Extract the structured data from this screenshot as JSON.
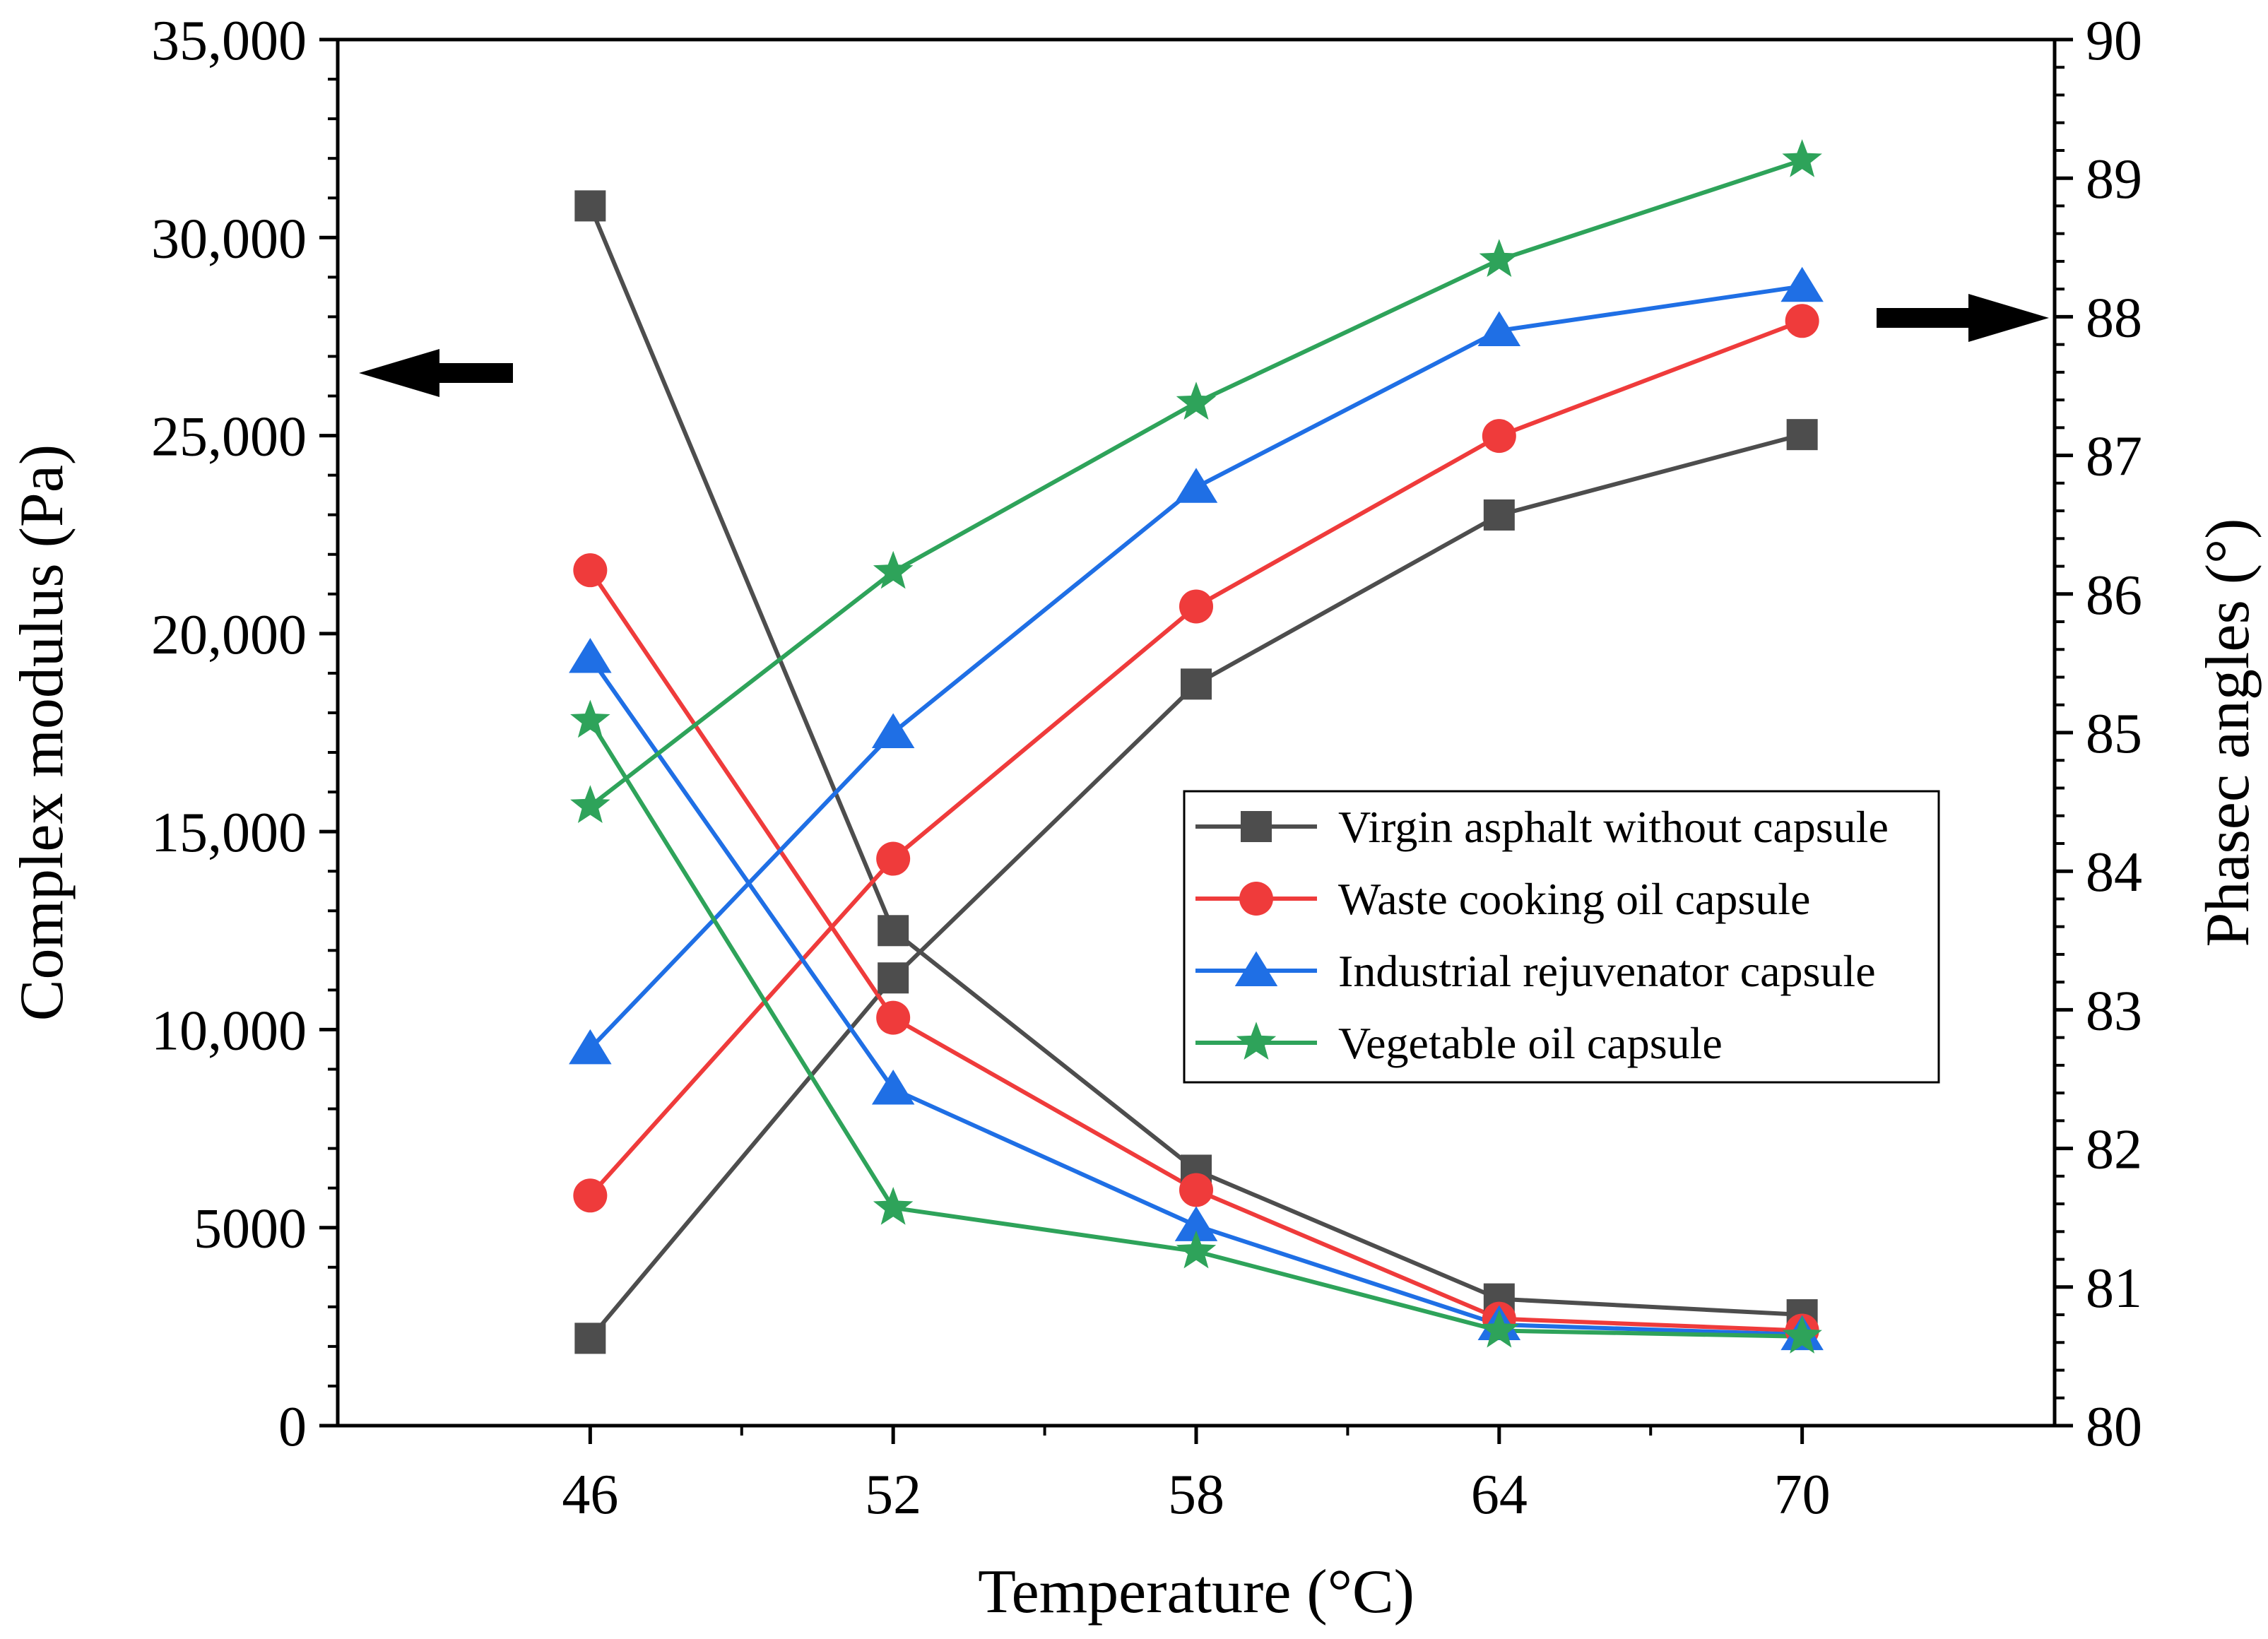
{
  "chart_data": {
    "type": "line",
    "x": [
      46,
      52,
      58,
      64,
      70
    ],
    "x_tick_labels": [
      "46",
      "52",
      "58",
      "64",
      "70"
    ],
    "xlabel": "Temperature (°C)",
    "xlim": [
      41,
      75
    ],
    "y_left": {
      "label": "Complex modulus (Pa)",
      "lim": [
        0,
        35000
      ],
      "ticks": [
        0,
        5000,
        10000,
        15000,
        20000,
        25000,
        30000,
        35000
      ],
      "tick_labels": [
        "0",
        "5000",
        "10,000",
        "15,000",
        "20,000",
        "25,000",
        "30,000",
        "35,000"
      ]
    },
    "y_right": {
      "label": "Phasec angles (°)",
      "lim": [
        80,
        90
      ],
      "ticks": [
        80,
        81,
        82,
        83,
        84,
        85,
        86,
        87,
        88,
        89,
        90
      ],
      "tick_labels": [
        "80",
        "81",
        "82",
        "83",
        "84",
        "85",
        "86",
        "87",
        "88",
        "89",
        "90"
      ]
    },
    "grid": false,
    "legend_position": "center-right",
    "series": [
      {
        "name": "Virgin asphalt without capsule",
        "color": "#4d4d4d",
        "marker": "square",
        "complex_modulus": [
          30800,
          12500,
          6450,
          3200,
          2800
        ],
        "phase_angle": [
          80.63,
          83.23,
          85.35,
          86.57,
          87.15
        ]
      },
      {
        "name": "Waste cooking oil capsule",
        "color": "#ef3b3b",
        "marker": "circle",
        "complex_modulus": [
          21600,
          10300,
          5950,
          2700,
          2400
        ],
        "phase_angle": [
          81.66,
          84.09,
          85.91,
          87.14,
          87.97
        ]
      },
      {
        "name": "Industrial rejuvenator capsule",
        "color": "#1f6fe5",
        "marker": "triangle",
        "complex_modulus": [
          19400,
          8500,
          5050,
          2550,
          2300
        ],
        "phase_angle": [
          82.72,
          85.0,
          86.77,
          87.9,
          88.22
        ]
      },
      {
        "name": "Vegetable oil capsule",
        "color": "#2ea35a",
        "marker": "star",
        "complex_modulus": [
          17800,
          5500,
          4400,
          2400,
          2250
        ],
        "phase_angle": [
          84.47,
          86.16,
          87.38,
          88.41,
          89.13
        ]
      }
    ]
  },
  "arrows": {
    "left_color": "#000000",
    "right_color": "#000000"
  }
}
